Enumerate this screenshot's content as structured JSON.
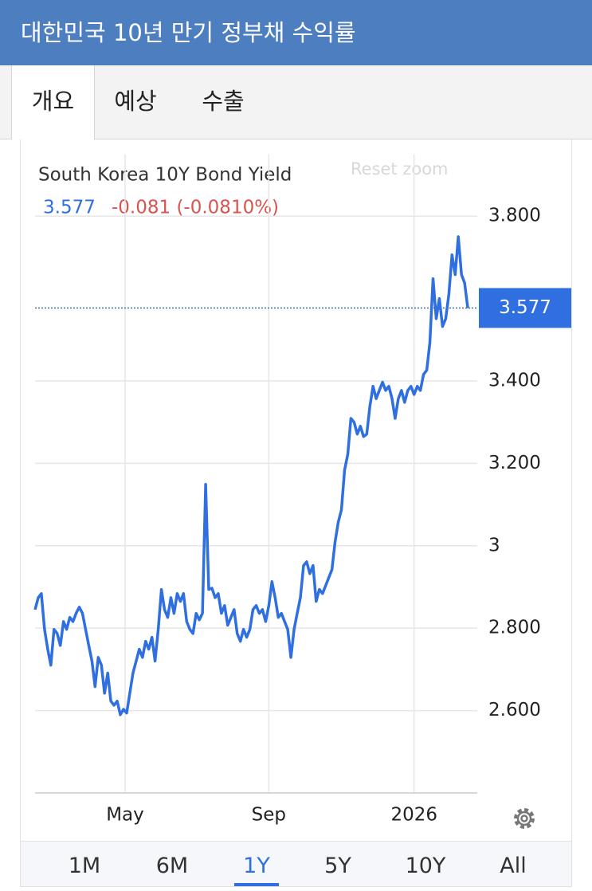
{
  "header": {
    "title": "대한민국 10년 만기 정부채 수익률"
  },
  "tabs": [
    "개요",
    "예상",
    "수출"
  ],
  "ranges": [
    "1M",
    "6M",
    "1Y",
    "5Y",
    "10Y",
    "All"
  ],
  "chart_data": {
    "type": "line",
    "title": "South Korea 10Y Bond Yield",
    "change_label": "-0.081 (-0.0810%)",
    "reset_zoom": "Reset zoom",
    "series": [
      {
        "name": "South Korea 10Y Bond Yield",
        "color": "#2f6fe0",
        "values": [
          2.845,
          2.874,
          2.884,
          2.797,
          2.749,
          2.71,
          2.797,
          2.787,
          2.758,
          2.816,
          2.797,
          2.826,
          2.816,
          2.836,
          2.851,
          2.836,
          2.797,
          2.758,
          2.72,
          2.658,
          2.729,
          2.71,
          2.642,
          2.691,
          2.623,
          2.613,
          2.623,
          2.59,
          2.603,
          2.594,
          2.642,
          2.691,
          2.72,
          2.749,
          2.729,
          2.768,
          2.749,
          2.778,
          2.72,
          2.797,
          2.894,
          2.845,
          2.826,
          2.874,
          2.836,
          2.884,
          2.865,
          2.884,
          2.816,
          2.797,
          2.787,
          2.836,
          2.82,
          2.836,
          3.149,
          2.894,
          2.897,
          2.874,
          2.884,
          2.836,
          2.855,
          2.807,
          2.826,
          2.845,
          2.787,
          2.768,
          2.797,
          2.778,
          2.797,
          2.845,
          2.855,
          2.836,
          2.845,
          2.816,
          2.855,
          2.913,
          2.874,
          2.826,
          2.836,
          2.816,
          2.797,
          2.729,
          2.797,
          2.836,
          2.874,
          2.952,
          2.961,
          2.932,
          2.952,
          2.865,
          2.894,
          2.884,
          2.903,
          2.923,
          2.942,
          3.01,
          3.058,
          3.087,
          3.184,
          3.222,
          3.309,
          3.3,
          3.271,
          3.29,
          3.265,
          3.271,
          3.338,
          3.387,
          3.357,
          3.377,
          3.397,
          3.377,
          3.387,
          3.357,
          3.309,
          3.357,
          3.377,
          3.348,
          3.377,
          3.387,
          3.367,
          3.387,
          3.377,
          3.416,
          3.426,
          3.493,
          3.648,
          3.551,
          3.6,
          3.532,
          3.551,
          3.609,
          3.706,
          3.658,
          3.75,
          3.658,
          3.638,
          3.577
        ]
      }
    ],
    "xlim": [
      0,
      140
    ],
    "xticks": [
      {
        "value": 28.5,
        "label": "May"
      },
      {
        "value": 74,
        "label": "Sep"
      },
      {
        "value": 120,
        "label": "2026"
      }
    ],
    "ylim": [
      2.4,
      3.95
    ],
    "yticks": [
      {
        "value": 2.6,
        "label": "2.600"
      },
      {
        "value": 2.8,
        "label": "2.800"
      },
      3,
      {
        "value": 3.2,
        "label": "3.200"
      },
      {
        "value": 3.4,
        "label": "3.400"
      },
      {
        "value": 3.8,
        "label": "3.800"
      }
    ],
    "grid": true
  }
}
